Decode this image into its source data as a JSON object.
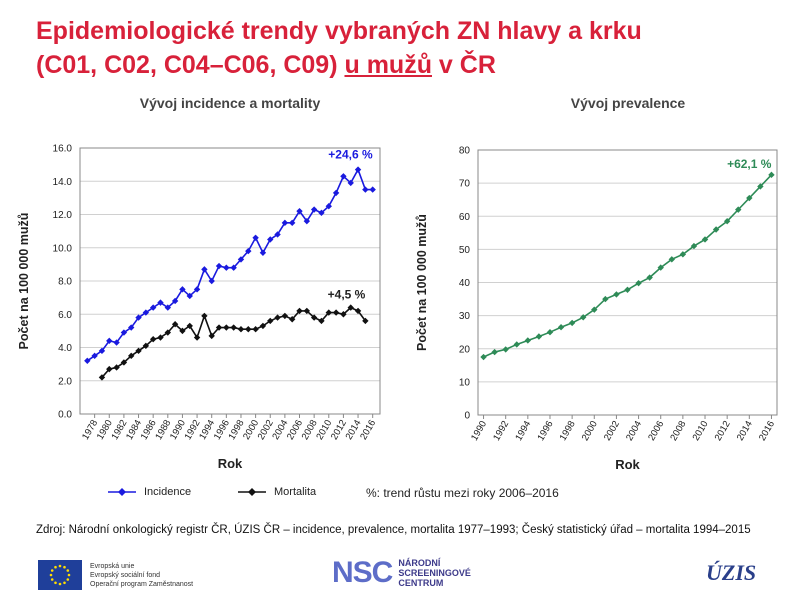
{
  "title": {
    "line1": "Epidemiologické trendy vybraných ZN hlavy a krku",
    "line2_a": "(C01, C02, C04–C06, C09) ",
    "line2_u": "u mužů",
    "line2_b": " v ČR"
  },
  "legend": {
    "incidence": "Incidence",
    "mortality": "Mortalita",
    "note": "%: trend růstu mezi roky 2006–2016"
  },
  "source": "Zdroj: Národní onkologický registr ČR, ÚZIS ČR – incidence, prevalence, mortalita 1977–1993; Český statistický úřad – mortalita 1994–2015",
  "footer": {
    "eu_line1": "Evropská unie",
    "eu_line2": "Evropský sociální fond",
    "eu_line3": "Operační program Zaměstnanost",
    "nsc_logo": "NSC",
    "nsc_line1": "NÁRODNÍ",
    "nsc_line2": "SCREENINGOVÉ",
    "nsc_line3": "CENTRUM",
    "uzis": "ÚZIS"
  },
  "colors": {
    "title": "#d8213a",
    "incidence": "#1a1adf",
    "mortality": "#111111",
    "prevalence": "#2e8b57",
    "grid": "#d0d0d0"
  },
  "chart_data": [
    {
      "type": "line",
      "title": "Vývoj incidence a mortality",
      "xlabel": "Rok",
      "ylabel": "Počet na 100 000 mužů",
      "ylim": [
        0,
        16
      ],
      "yticks": [
        "0.0",
        "2.0",
        "4.0",
        "6.0",
        "8.0",
        "10.0",
        "12.0",
        "14.0",
        "16.0"
      ],
      "xtick_labels": [
        "1978",
        "1980",
        "1982",
        "1984",
        "1986",
        "1988",
        "1990",
        "1992",
        "1994",
        "1996",
        "1998",
        "2000",
        "2002",
        "2004",
        "2006",
        "2008",
        "2010",
        "2012",
        "2014",
        "2016"
      ],
      "grid": true,
      "series": [
        {
          "name": "Incidence",
          "color": "#1a1adf",
          "annotation": "+24,6 %",
          "x": [
            1977,
            1978,
            1979,
            1980,
            1981,
            1982,
            1983,
            1984,
            1985,
            1986,
            1987,
            1988,
            1989,
            1990,
            1991,
            1992,
            1993,
            1994,
            1995,
            1996,
            1997,
            1998,
            1999,
            2000,
            2001,
            2002,
            2003,
            2004,
            2005,
            2006,
            2007,
            2008,
            2009,
            2010,
            2011,
            2012,
            2013,
            2014,
            2015,
            2016
          ],
          "values": [
            3.2,
            3.5,
            3.8,
            4.4,
            4.3,
            4.9,
            5.2,
            5.8,
            6.1,
            6.4,
            6.7,
            6.4,
            6.8,
            7.5,
            7.1,
            7.5,
            8.7,
            8.0,
            8.9,
            8.8,
            8.8,
            9.3,
            9.8,
            10.6,
            9.7,
            10.5,
            10.8,
            11.5,
            11.5,
            12.2,
            11.6,
            12.3,
            12.1,
            12.5,
            13.3,
            14.3,
            13.9,
            14.7,
            13.5,
            13.5
          ]
        },
        {
          "name": "Mortalita",
          "color": "#111111",
          "annotation": "+4,5 %",
          "x": [
            1979,
            1980,
            1981,
            1982,
            1983,
            1984,
            1985,
            1986,
            1987,
            1988,
            1989,
            1990,
            1991,
            1992,
            1993,
            1994,
            1995,
            1996,
            1997,
            1998,
            1999,
            2000,
            2001,
            2002,
            2003,
            2004,
            2005,
            2006,
            2007,
            2008,
            2009,
            2010,
            2011,
            2012,
            2013,
            2014,
            2015
          ],
          "values": [
            2.2,
            2.7,
            2.8,
            3.1,
            3.5,
            3.8,
            4.1,
            4.5,
            4.6,
            4.9,
            5.4,
            5.0,
            5.3,
            4.6,
            5.9,
            4.7,
            5.2,
            5.2,
            5.2,
            5.1,
            5.1,
            5.1,
            5.3,
            5.6,
            5.8,
            5.9,
            5.7,
            6.2,
            6.2,
            5.8,
            5.6,
            6.1,
            6.1,
            6.0,
            6.4,
            6.2,
            5.6
          ]
        }
      ]
    },
    {
      "type": "line",
      "title": "Vývoj prevalence",
      "xlabel": "Rok",
      "ylabel": "Počet na 100 000 mužů",
      "ylim": [
        0,
        80
      ],
      "yticks": [
        "0",
        "10",
        "20",
        "30",
        "40",
        "50",
        "60",
        "70",
        "80"
      ],
      "xtick_labels": [
        "1990",
        "1992",
        "1994",
        "1996",
        "1998",
        "2000",
        "2002",
        "2004",
        "2006",
        "2008",
        "2010",
        "2012",
        "2014",
        "2016"
      ],
      "grid": true,
      "series": [
        {
          "name": "Prevalence",
          "color": "#2e8b57",
          "annotation": "+62,1 %",
          "x": [
            1990,
            1991,
            1992,
            1993,
            1994,
            1995,
            1996,
            1997,
            1998,
            1999,
            2000,
            2001,
            2002,
            2003,
            2004,
            2005,
            2006,
            2007,
            2008,
            2009,
            2010,
            2011,
            2012,
            2013,
            2014,
            2015,
            2016
          ],
          "values": [
            17.5,
            19.0,
            19.8,
            21.3,
            22.5,
            23.7,
            25.0,
            26.5,
            27.8,
            29.5,
            31.8,
            35.0,
            36.4,
            37.8,
            39.8,
            41.5,
            44.5,
            47.0,
            48.5,
            51.0,
            53.0,
            56.0,
            58.5,
            62.0,
            65.5,
            69.0,
            72.5
          ]
        }
      ]
    }
  ]
}
